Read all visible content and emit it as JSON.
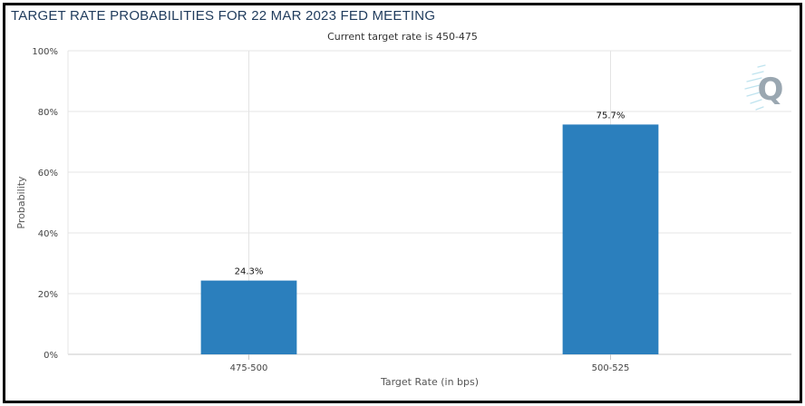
{
  "header": {
    "title": "TARGET RATE PROBABILITIES FOR 22 MAR 2023 FED MEETING",
    "subtitle": "Current target rate is 450-475"
  },
  "logo": {
    "icon": "quikstrike-q-logo",
    "letter": "Q",
    "color": "#9aa7b1"
  },
  "colors": {
    "bar": "#2b7fbd",
    "grid": "#e4e4e4",
    "axis": "#c8c8c8"
  },
  "chart_data": {
    "type": "bar",
    "title": "TARGET RATE PROBABILITIES FOR 22 MAR 2023 FED MEETING",
    "subtitle": "Current target rate is 450-475",
    "xlabel": "Target Rate (in bps)",
    "ylabel": "Probability",
    "categories": [
      "475-500",
      "500-525"
    ],
    "values": [
      24.3,
      75.7
    ],
    "data_labels": [
      "24.3%",
      "75.7%"
    ],
    "yticks": [
      "0%",
      "20%",
      "40%",
      "60%",
      "80%",
      "100%"
    ],
    "ytick_values": [
      0,
      20,
      40,
      60,
      80,
      100
    ],
    "ylim": [
      0,
      100
    ],
    "grid": true,
    "legend": "none"
  }
}
